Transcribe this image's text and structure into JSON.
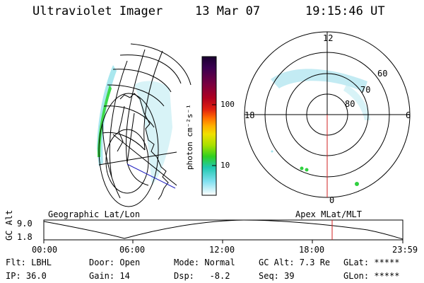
{
  "header": {
    "instrument": "Ultraviolet Imager",
    "date": "13 Mar 07",
    "time": "19:15:46 UT"
  },
  "colorbar": {
    "unit_label": "photon cm⁻²s⁻¹",
    "ticks": [
      "100",
      "10"
    ],
    "colors": [
      "#1a0030",
      "#3a0050",
      "#7a0040",
      "#b00020",
      "#e02010",
      "#ff6a00",
      "#ffb000",
      "#f0e000",
      "#a8e000",
      "#30d020",
      "#20c8b0",
      "#80e0f0",
      "#ffffff"
    ]
  },
  "polar_plot": {
    "mlt_labels": {
      "top": "12",
      "left": "18",
      "right": "6",
      "bottom": "0"
    },
    "lat_labels": [
      "60",
      "70",
      "80"
    ]
  },
  "timeline": {
    "left_label": "Geographic Lat/Lon",
    "right_label": "Apex MLat/MLT",
    "y_axis_title": "GC Alt",
    "y_ticks": [
      "9.0",
      "1.8"
    ],
    "x_ticks": [
      "00:00",
      "06:00",
      "12:00",
      "18:00",
      "23:59"
    ],
    "current_time_fraction": 0.804
  },
  "status": {
    "row1": [
      "Flt: LBHL",
      "Door: Open",
      "Mode: Normal",
      "GC Alt: 7.3 Re",
      "GLat: *****"
    ],
    "row2": [
      "IP: 36.0",
      "Gain: 14",
      "Dsp:   -8.2",
      "Seq: 39",
      "GLon: *****"
    ]
  }
}
